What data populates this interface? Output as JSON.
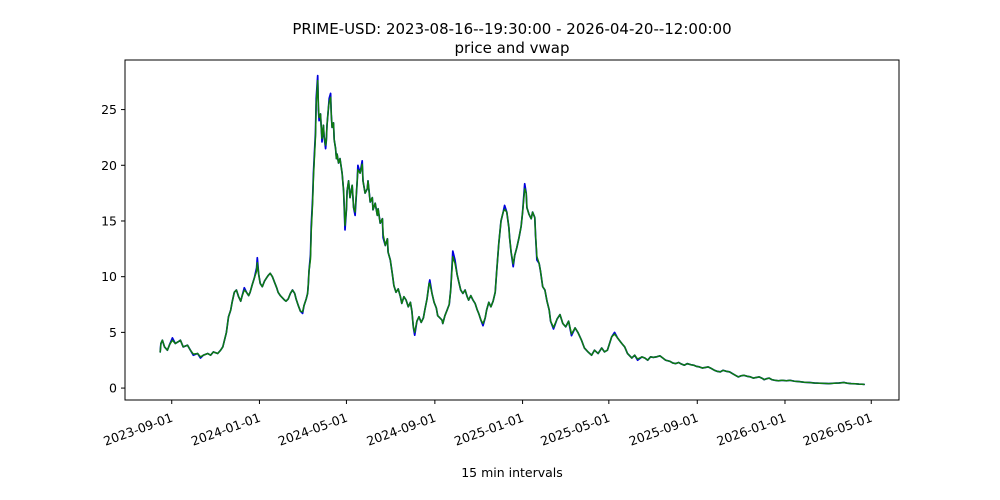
{
  "figure": {
    "title_line1": "PRIME-USD: 2023-08-16--19:30:00 - 2026-04-20--12:00:00",
    "title_line2": "price and vwap"
  },
  "chart_data": {
    "type": "line",
    "title": "PRIME-USD: 2023-08-16--19:30:00 - 2026-04-20--12:00:00",
    "subtitle": "price and vwap",
    "xlabel": "15 min intervals",
    "ylabel": "",
    "grid": false,
    "legend_position": "none",
    "x_unit": "days since 2023-08-16 19:30:00",
    "x_start": "2023-08-16 19:30:00",
    "x_end": "2026-04-20 12:00:00",
    "xlim": [
      -49.0,
      1027.6
    ],
    "ylim": [
      -1.07,
      29.45
    ],
    "y_ticks": [
      0,
      5,
      10,
      15,
      20,
      25
    ],
    "x_ticks": [
      {
        "label": "2023-09-01",
        "day": 16
      },
      {
        "label": "2024-01-01",
        "day": 138
      },
      {
        "label": "2024-05-01",
        "day": 259
      },
      {
        "label": "2024-09-01",
        "day": 382
      },
      {
        "label": "2025-01-01",
        "day": 504
      },
      {
        "label": "2025-05-01",
        "day": 624
      },
      {
        "label": "2025-09-01",
        "day": 747
      },
      {
        "label": "2026-01-01",
        "day": 869
      },
      {
        "label": "2026-05-01",
        "day": 989
      }
    ],
    "series_meta": [
      {
        "name": "price",
        "color": "#0000dd"
      },
      {
        "name": "vwap",
        "color": "#0e7c0e"
      }
    ],
    "columns": [
      "day",
      "price",
      "vwap_null_means_same_as_price"
    ],
    "rows": [
      [
        0,
        3.25,
        null
      ],
      [
        1,
        4.0,
        null
      ],
      [
        3,
        4.3,
        null
      ],
      [
        6,
        3.7,
        null
      ],
      [
        10,
        3.4,
        null
      ],
      [
        13,
        3.9,
        null
      ],
      [
        17,
        4.5,
        4.3
      ],
      [
        21,
        4.0,
        null
      ],
      [
        26,
        4.2,
        null
      ],
      [
        28,
        4.3,
        null
      ],
      [
        32,
        3.7,
        null
      ],
      [
        38,
        3.85,
        null
      ],
      [
        42,
        3.4,
        null
      ],
      [
        46,
        2.95,
        3.05
      ],
      [
        52,
        3.1,
        null
      ],
      [
        56,
        2.7,
        2.8
      ],
      [
        60,
        2.95,
        null
      ],
      [
        66,
        3.1,
        null
      ],
      [
        70,
        2.95,
        null
      ],
      [
        74,
        3.25,
        null
      ],
      [
        80,
        3.1,
        null
      ],
      [
        84,
        3.4,
        null
      ],
      [
        87,
        3.7,
        null
      ],
      [
        89,
        4.2,
        null
      ],
      [
        92,
        5.0,
        null
      ],
      [
        95,
        6.4,
        null
      ],
      [
        98,
        7.0,
        null
      ],
      [
        100,
        7.7,
        null
      ],
      [
        103,
        8.6,
        null
      ],
      [
        106,
        8.8,
        null
      ],
      [
        109,
        8.2,
        null
      ],
      [
        112,
        7.8,
        null
      ],
      [
        114,
        8.3,
        null
      ],
      [
        117,
        9.0,
        8.8
      ],
      [
        120,
        8.6,
        null
      ],
      [
        123,
        8.3,
        null
      ],
      [
        125,
        8.6,
        null
      ],
      [
        128,
        9.3,
        null
      ],
      [
        131,
        9.9,
        null
      ],
      [
        134,
        10.8,
        10.5
      ],
      [
        135,
        11.7,
        11.25
      ],
      [
        137,
        10.2,
        null
      ],
      [
        139,
        9.4,
        null
      ],
      [
        142,
        9.1,
        null
      ],
      [
        145,
        9.6,
        null
      ],
      [
        148,
        9.9,
        null
      ],
      [
        150,
        10.1,
        null
      ],
      [
        153,
        10.3,
        null
      ],
      [
        156,
        10.0,
        null
      ],
      [
        159,
        9.5,
        null
      ],
      [
        162,
        9.0,
        null
      ],
      [
        164,
        8.6,
        null
      ],
      [
        167,
        8.3,
        null
      ],
      [
        170,
        8.1,
        null
      ],
      [
        173,
        7.9,
        null
      ],
      [
        175,
        7.8,
        null
      ],
      [
        178,
        8.0,
        null
      ],
      [
        181,
        8.5,
        null
      ],
      [
        184,
        8.8,
        null
      ],
      [
        187,
        8.5,
        null
      ],
      [
        189,
        8.0,
        null
      ],
      [
        192,
        7.4,
        null
      ],
      [
        195,
        6.9,
        null
      ],
      [
        198,
        6.7,
        6.85
      ],
      [
        200,
        7.4,
        null
      ],
      [
        203,
        8.0,
        null
      ],
      [
        205,
        8.5,
        null
      ],
      [
        206,
        9.3,
        null
      ],
      [
        207,
        10.5,
        null
      ],
      [
        209,
        12.0,
        11.6
      ],
      [
        210,
        14.5,
        14.0
      ],
      [
        212,
        17.0,
        16.6
      ],
      [
        213,
        19.2,
        18.8
      ],
      [
        214,
        20.5,
        20.1
      ],
      [
        216,
        23.0,
        22.6
      ],
      [
        217,
        26.0,
        25.5
      ],
      [
        219,
        28.05,
        27.6
      ],
      [
        220,
        25.0,
        25.3
      ],
      [
        221,
        24.0,
        24.3
      ],
      [
        223,
        24.6,
        null
      ],
      [
        224,
        23.3,
        null
      ],
      [
        225,
        22.1,
        22.4
      ],
      [
        227,
        23.6,
        null
      ],
      [
        228,
        22.6,
        null
      ],
      [
        230,
        21.5,
        21.8
      ],
      [
        231,
        22.2,
        null
      ],
      [
        232,
        23.6,
        null
      ],
      [
        234,
        25.2,
        null
      ],
      [
        235,
        26.0,
        25.7
      ],
      [
        237,
        26.45,
        26.1
      ],
      [
        238,
        24.5,
        null
      ],
      [
        239,
        23.4,
        null
      ],
      [
        241,
        23.8,
        null
      ],
      [
        242,
        22.3,
        null
      ],
      [
        244,
        21.5,
        null
      ],
      [
        245,
        20.6,
        null
      ],
      [
        246,
        21.0,
        null
      ],
      [
        248,
        20.2,
        null
      ],
      [
        250,
        20.6,
        null
      ],
      [
        253,
        19.3,
        null
      ],
      [
        255,
        17.7,
        null
      ],
      [
        257,
        14.2,
        14.6
      ],
      [
        259,
        16.0,
        null
      ],
      [
        260,
        17.7,
        null
      ],
      [
        262,
        18.6,
        null
      ],
      [
        264,
        17.1,
        null
      ],
      [
        267,
        18.2,
        null
      ],
      [
        269,
        16.2,
        null
      ],
      [
        271,
        15.5,
        15.8
      ],
      [
        274,
        18.6,
        null
      ],
      [
        275,
        20.0,
        19.6
      ],
      [
        278,
        19.3,
        null
      ],
      [
        281,
        20.4,
        20.1
      ],
      [
        282,
        18.6,
        null
      ],
      [
        285,
        17.5,
        null
      ],
      [
        288,
        17.9,
        null
      ],
      [
        289,
        18.6,
        null
      ],
      [
        292,
        16.7,
        null
      ],
      [
        295,
        17.1,
        null
      ],
      [
        296,
        16.0,
        null
      ],
      [
        299,
        16.6,
        null
      ],
      [
        302,
        15.5,
        null
      ],
      [
        303,
        16.1,
        null
      ],
      [
        306,
        14.8,
        null
      ],
      [
        309,
        15.2,
        null
      ],
      [
        310,
        13.5,
        13.8
      ],
      [
        313,
        12.8,
        null
      ],
      [
        316,
        13.4,
        null
      ],
      [
        317,
        12.2,
        null
      ],
      [
        320,
        11.5,
        null
      ],
      [
        323,
        10.2,
        null
      ],
      [
        325,
        9.2,
        null
      ],
      [
        328,
        8.6,
        null
      ],
      [
        331,
        8.9,
        null
      ],
      [
        334,
        8.2,
        null
      ],
      [
        336,
        7.6,
        null
      ],
      [
        339,
        8.2,
        null
      ],
      [
        342,
        7.9,
        null
      ],
      [
        345,
        7.3,
        null
      ],
      [
        348,
        7.7,
        null
      ],
      [
        350,
        6.9,
        null
      ],
      [
        352,
        5.5,
        null
      ],
      [
        354,
        4.75,
        5.0
      ],
      [
        357,
        6.0,
        null
      ],
      [
        360,
        6.4,
        null
      ],
      [
        363,
        5.9,
        null
      ],
      [
        366,
        6.3,
        null
      ],
      [
        368,
        7.0,
        null
      ],
      [
        371,
        8.0,
        null
      ],
      [
        374,
        9.4,
        null
      ],
      [
        375,
        9.7,
        9.4
      ],
      [
        378,
        8.5,
        null
      ],
      [
        381,
        7.7,
        null
      ],
      [
        384,
        7.2,
        null
      ],
      [
        386,
        6.5,
        null
      ],
      [
        389,
        6.3,
        null
      ],
      [
        392,
        6.1,
        null
      ],
      [
        393,
        5.8,
        null
      ],
      [
        396,
        6.5,
        null
      ],
      [
        399,
        7.0,
        null
      ],
      [
        402,
        7.5,
        null
      ],
      [
        404,
        8.8,
        null
      ],
      [
        407,
        12.3,
        11.8
      ],
      [
        410,
        11.5,
        11.2
      ],
      [
        413,
        10.2,
        null
      ],
      [
        415,
        9.6,
        null
      ],
      [
        418,
        8.8,
        null
      ],
      [
        421,
        8.5,
        null
      ],
      [
        424,
        8.8,
        null
      ],
      [
        427,
        8.2,
        null
      ],
      [
        429,
        7.9,
        null
      ],
      [
        432,
        8.3,
        null
      ],
      [
        435,
        7.9,
        null
      ],
      [
        438,
        7.6,
        null
      ],
      [
        441,
        7.0,
        null
      ],
      [
        443,
        6.7,
        null
      ],
      [
        446,
        6.1,
        null
      ],
      [
        449,
        5.6,
        5.8
      ],
      [
        452,
        6.3,
        null
      ],
      [
        454,
        7.0,
        null
      ],
      [
        457,
        7.7,
        null
      ],
      [
        460,
        7.3,
        null
      ],
      [
        463,
        7.8,
        null
      ],
      [
        466,
        8.6,
        null
      ],
      [
        468,
        10.5,
        null
      ],
      [
        471,
        13.0,
        null
      ],
      [
        474,
        15.0,
        null
      ],
      [
        477,
        15.8,
        null
      ],
      [
        479,
        16.4,
        16.05
      ],
      [
        482,
        15.8,
        null
      ],
      [
        485,
        14.4,
        null
      ],
      [
        486,
        13.5,
        null
      ],
      [
        488,
        12.2,
        null
      ],
      [
        491,
        10.9,
        11.15
      ],
      [
        493,
        11.9,
        null
      ],
      [
        496,
        12.6,
        null
      ],
      [
        499,
        13.5,
        null
      ],
      [
        502,
        14.5,
        null
      ],
      [
        504,
        15.8,
        null
      ],
      [
        507,
        18.35,
        17.9
      ],
      [
        509,
        17.5,
        null
      ],
      [
        510,
        16.2,
        null
      ],
      [
        513,
        15.6,
        null
      ],
      [
        516,
        15.2,
        null
      ],
      [
        518,
        15.8,
        null
      ],
      [
        521,
        15.3,
        null
      ],
      [
        522,
        13.8,
        null
      ],
      [
        524,
        11.5,
        11.8
      ],
      [
        527,
        11.2,
        null
      ],
      [
        529,
        10.5,
        null
      ],
      [
        532,
        9.1,
        null
      ],
      [
        535,
        8.8,
        null
      ],
      [
        538,
        7.8,
        null
      ],
      [
        541,
        7.0,
        null
      ],
      [
        543,
        6.0,
        null
      ],
      [
        547,
        5.3,
        5.45
      ],
      [
        552,
        6.2,
        null
      ],
      [
        556,
        6.6,
        null
      ],
      [
        560,
        5.8,
        null
      ],
      [
        564,
        5.5,
        null
      ],
      [
        568,
        6.0,
        null
      ],
      [
        572,
        4.7,
        4.85
      ],
      [
        577,
        5.4,
        null
      ],
      [
        581,
        5.0,
        null
      ],
      [
        586,
        4.3,
        null
      ],
      [
        590,
        3.6,
        null
      ],
      [
        595,
        3.25,
        null
      ],
      [
        600,
        2.95,
        null
      ],
      [
        604,
        3.4,
        null
      ],
      [
        609,
        3.1,
        null
      ],
      [
        614,
        3.6,
        null
      ],
      [
        618,
        3.25,
        null
      ],
      [
        622,
        3.4,
        null
      ],
      [
        628,
        4.6,
        null
      ],
      [
        632,
        5.0,
        4.85
      ],
      [
        636,
        4.5,
        null
      ],
      [
        642,
        4.0,
        null
      ],
      [
        646,
        3.7,
        null
      ],
      [
        650,
        3.1,
        null
      ],
      [
        656,
        2.7,
        null
      ],
      [
        660,
        2.95,
        null
      ],
      [
        664,
        2.5,
        2.6
      ],
      [
        670,
        2.8,
        null
      ],
      [
        674,
        2.7,
        null
      ],
      [
        678,
        2.5,
        null
      ],
      [
        682,
        2.8,
        null
      ],
      [
        686,
        2.75,
        null
      ],
      [
        690,
        2.8,
        null
      ],
      [
        695,
        2.9,
        null
      ],
      [
        699,
        2.7,
        null
      ],
      [
        703,
        2.5,
        null
      ],
      [
        709,
        2.4,
        null
      ],
      [
        713,
        2.25,
        null
      ],
      [
        717,
        2.2,
        null
      ],
      [
        721,
        2.3,
        null
      ],
      [
        725,
        2.15,
        null
      ],
      [
        729,
        2.05,
        null
      ],
      [
        733,
        2.2,
        null
      ],
      [
        738,
        2.1,
        null
      ],
      [
        742,
        2.05,
        null
      ],
      [
        746,
        1.95,
        null
      ],
      [
        750,
        1.9,
        null
      ],
      [
        754,
        1.8,
        null
      ],
      [
        758,
        1.85,
        null
      ],
      [
        762,
        1.9,
        null
      ],
      [
        767,
        1.75,
        null
      ],
      [
        771,
        1.6,
        null
      ],
      [
        775,
        1.5,
        null
      ],
      [
        779,
        1.45,
        null
      ],
      [
        783,
        1.6,
        null
      ],
      [
        788,
        1.5,
        null
      ],
      [
        792,
        1.45,
        null
      ],
      [
        796,
        1.3,
        null
      ],
      [
        800,
        1.15,
        null
      ],
      [
        804,
        1.0,
        null
      ],
      [
        808,
        1.1,
        null
      ],
      [
        812,
        1.15,
        null
      ],
      [
        817,
        1.05,
        null
      ],
      [
        821,
        1.0,
        null
      ],
      [
        825,
        0.9,
        null
      ],
      [
        829,
        0.95,
        null
      ],
      [
        833,
        1.0,
        null
      ],
      [
        838,
        0.85,
        null
      ],
      [
        840,
        0.75,
        null
      ],
      [
        844,
        0.85,
        null
      ],
      [
        847,
        0.9,
        null
      ],
      [
        851,
        0.75,
        null
      ],
      [
        855,
        0.7,
        null
      ],
      [
        860,
        0.65,
        null
      ],
      [
        865,
        0.7,
        null
      ],
      [
        871,
        0.65,
        null
      ],
      [
        876,
        0.7,
        null
      ],
      [
        882,
        0.62,
        null
      ],
      [
        889,
        0.58,
        null
      ],
      [
        896,
        0.52,
        null
      ],
      [
        903,
        0.5,
        null
      ],
      [
        910,
        0.46,
        null
      ],
      [
        917,
        0.44,
        null
      ],
      [
        924,
        0.42,
        null
      ],
      [
        930,
        0.4,
        null
      ],
      [
        937,
        0.44,
        null
      ],
      [
        944,
        0.46,
        null
      ],
      [
        951,
        0.5,
        null
      ],
      [
        955,
        0.45,
        null
      ],
      [
        961,
        0.4,
        null
      ],
      [
        967,
        0.38,
        null
      ],
      [
        972,
        0.36,
        null
      ],
      [
        976,
        0.35,
        null
      ],
      [
        979,
        0.33,
        null
      ]
    ]
  }
}
